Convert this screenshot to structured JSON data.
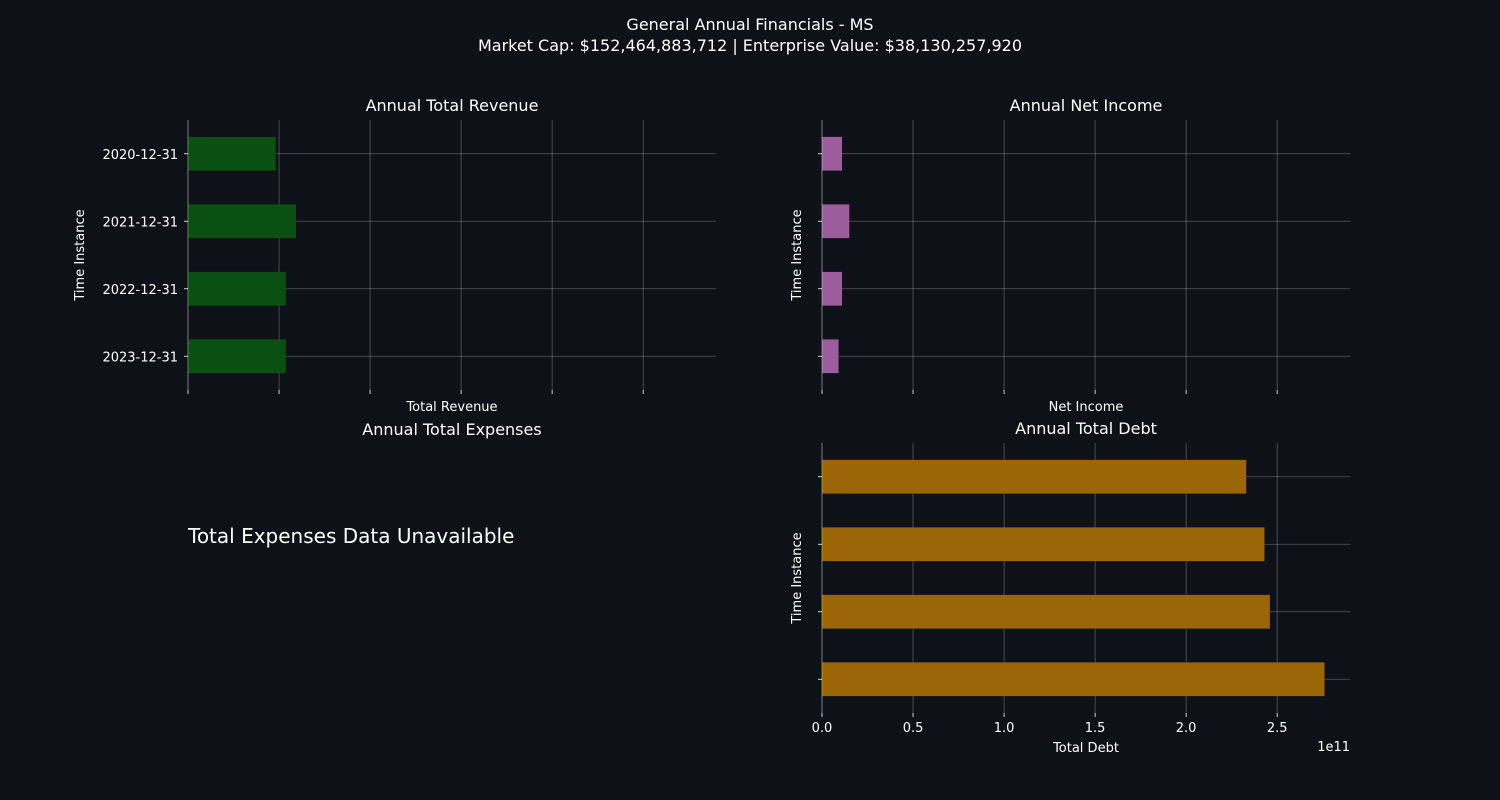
{
  "figure": {
    "title_line1": "General Annual Financials - MS",
    "title_line2": "Market Cap: $152,464,883,712 | Enterprise Value: $38,130,257,920"
  },
  "expenses_panel": {
    "title": "Annual Total Expenses",
    "message": "Total Expenses Data Unavailable"
  },
  "chart_data": [
    {
      "id": "revenue",
      "type": "bar",
      "orientation": "horizontal",
      "title": "Annual Total Revenue",
      "xlabel": "Total Revenue",
      "ylabel": "Time Instance",
      "categories": [
        "2020-12-31",
        "2021-12-31",
        "2022-12-31",
        "2023-12-31"
      ],
      "values": [
        48200000000,
        59300000000,
        53700000000,
        53700000000
      ],
      "xlim": [
        0,
        290000000000
      ],
      "xticks": [
        0,
        50000000000,
        100000000000,
        150000000000,
        200000000000,
        250000000000
      ],
      "show_ytick_labels": true,
      "show_xtick_labels": false,
      "grid": true,
      "color": "#0a5012"
    },
    {
      "id": "net_income",
      "type": "bar",
      "orientation": "horizontal",
      "title": "Annual Net Income",
      "xlabel": "Net Income",
      "ylabel": "Time Instance",
      "categories": [
        "2020-12-31",
        "2021-12-31",
        "2022-12-31",
        "2023-12-31"
      ],
      "values": [
        11000000000,
        15000000000,
        11000000000,
        9100000000
      ],
      "xlim": [
        0,
        290000000000
      ],
      "xticks": [
        0,
        50000000000,
        100000000000,
        150000000000,
        200000000000,
        250000000000
      ],
      "show_ytick_labels": false,
      "show_xtick_labels": false,
      "grid": true,
      "color": "#9b5d9b"
    },
    {
      "id": "debt",
      "type": "bar",
      "orientation": "horizontal",
      "title": "Annual Total Debt",
      "xlabel": "Total Debt",
      "ylabel": "Time Instance",
      "categories": [
        "2020-12-31",
        "2021-12-31",
        "2022-12-31",
        "2023-12-31"
      ],
      "values": [
        233000000000,
        243000000000,
        246000000000,
        276000000000
      ],
      "xlim": [
        0,
        290000000000
      ],
      "xticks": [
        0,
        50000000000,
        100000000000,
        150000000000,
        200000000000,
        250000000000
      ],
      "xtick_labels": [
        "0.0",
        "0.5",
        "1.0",
        "1.5",
        "2.0",
        "2.5"
      ],
      "offset_text": "1e11",
      "show_ytick_labels": false,
      "show_xtick_labels": true,
      "grid": true,
      "color": "#9a6608"
    }
  ]
}
